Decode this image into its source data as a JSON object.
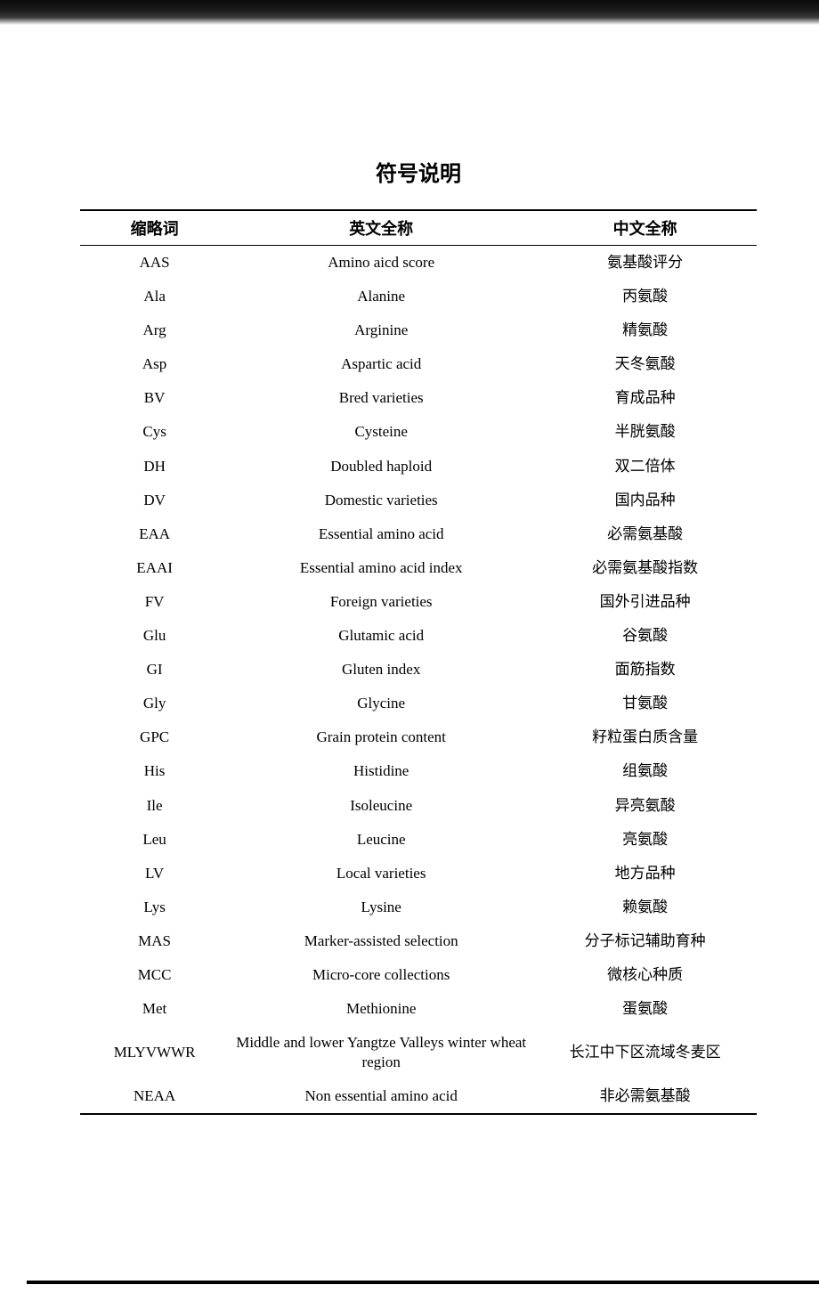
{
  "title": "符号说明",
  "table": {
    "headers": {
      "abbrev": "缩略词",
      "english": "英文全称",
      "chinese": "中文全称"
    },
    "rows": [
      {
        "abbrev": "AAS",
        "english": "Amino aicd score",
        "chinese": "氨基酸评分"
      },
      {
        "abbrev": "Ala",
        "english": "Alanine",
        "chinese": "丙氨酸"
      },
      {
        "abbrev": "Arg",
        "english": "Arginine",
        "chinese": "精氨酸"
      },
      {
        "abbrev": "Asp",
        "english": "Aspartic acid",
        "chinese": "天冬氨酸"
      },
      {
        "abbrev": "BV",
        "english": "Bred varieties",
        "chinese": "育成品种"
      },
      {
        "abbrev": "Cys",
        "english": "Cysteine",
        "chinese": "半胱氨酸"
      },
      {
        "abbrev": "DH",
        "english": "Doubled haploid",
        "chinese": "双二倍体"
      },
      {
        "abbrev": "DV",
        "english": "Domestic varieties",
        "chinese": "国内品种"
      },
      {
        "abbrev": "EAA",
        "english": "Essential amino acid",
        "chinese": "必需氨基酸"
      },
      {
        "abbrev": "EAAI",
        "english": "Essential amino acid index",
        "chinese": "必需氨基酸指数"
      },
      {
        "abbrev": "FV",
        "english": "Foreign varieties",
        "chinese": "国外引进品种"
      },
      {
        "abbrev": "Glu",
        "english": "Glutamic acid",
        "chinese": "谷氨酸"
      },
      {
        "abbrev": "GI",
        "english": "Gluten index",
        "chinese": "面筋指数"
      },
      {
        "abbrev": "Gly",
        "english": "Glycine",
        "chinese": "甘氨酸"
      },
      {
        "abbrev": "GPC",
        "english": "Grain protein content",
        "chinese": "籽粒蛋白质含量"
      },
      {
        "abbrev": "His",
        "english": "Histidine",
        "chinese": "组氨酸"
      },
      {
        "abbrev": "Ile",
        "english": "Isoleucine",
        "chinese": "异亮氨酸"
      },
      {
        "abbrev": "Leu",
        "english": "Leucine",
        "chinese": "亮氨酸"
      },
      {
        "abbrev": "LV",
        "english": "Local varieties",
        "chinese": "地方品种"
      },
      {
        "abbrev": "Lys",
        "english": "Lysine",
        "chinese": "赖氨酸"
      },
      {
        "abbrev": "MAS",
        "english": "Marker-assisted selection",
        "chinese": "分子标记辅助育种"
      },
      {
        "abbrev": "MCC",
        "english": "Micro-core collections",
        "chinese": "微核心种质"
      },
      {
        "abbrev": "Met",
        "english": "Methionine",
        "chinese": "蛋氨酸"
      },
      {
        "abbrev": "MLYVWWR",
        "english": "Middle and lower Yangtze Valleys winter wheat region",
        "chinese": "长江中下区流域冬麦区"
      },
      {
        "abbrev": "NEAA",
        "english": "Non essential amino acid",
        "chinese": "非必需氨基酸"
      }
    ]
  },
  "colors": {
    "text": "#000000",
    "background": "#ffffff",
    "border": "#000000"
  },
  "typography": {
    "title_fontsize": 24,
    "header_fontsize": 18,
    "cell_fontsize": 17
  }
}
